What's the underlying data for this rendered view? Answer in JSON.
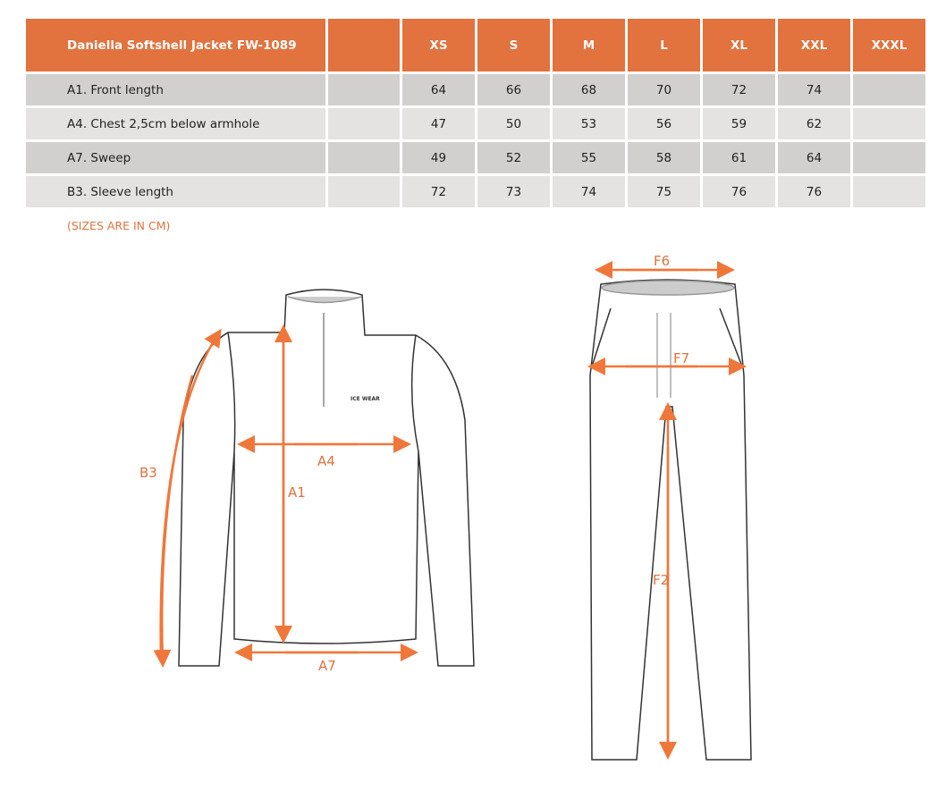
{
  "table": {
    "title": "Daniella Softshell Jacket FW-1089",
    "sizes": [
      "XS",
      "S",
      "M",
      "L",
      "XL",
      "XXL",
      "XXXL"
    ],
    "rows": [
      {
        "label": "A1. Front length",
        "values": [
          "64",
          "66",
          "68",
          "70",
          "72",
          "74",
          ""
        ]
      },
      {
        "label": "A4. Chest 2,5cm below armhole",
        "values": [
          "47",
          "50",
          "53",
          "56",
          "59",
          "62",
          ""
        ]
      },
      {
        "label": "A7. Sweep",
        "values": [
          "49",
          "52",
          "55",
          "58",
          "61",
          "64",
          ""
        ]
      },
      {
        "label": "B3. Sleeve length",
        "values": [
          "72",
          "73",
          "74",
          "75",
          "76",
          "76",
          ""
        ]
      }
    ]
  },
  "note": "(SIZES ARE IN CM)",
  "diagram": {
    "jacket_labels": {
      "a1": "A1",
      "a4": "A4",
      "a7": "A7",
      "b3": "B3"
    },
    "pants_labels": {
      "f2": "F2",
      "f6": "F6",
      "f7": "F7"
    },
    "logo_text": "ICE WEAR",
    "accent": "#e2723e"
  }
}
